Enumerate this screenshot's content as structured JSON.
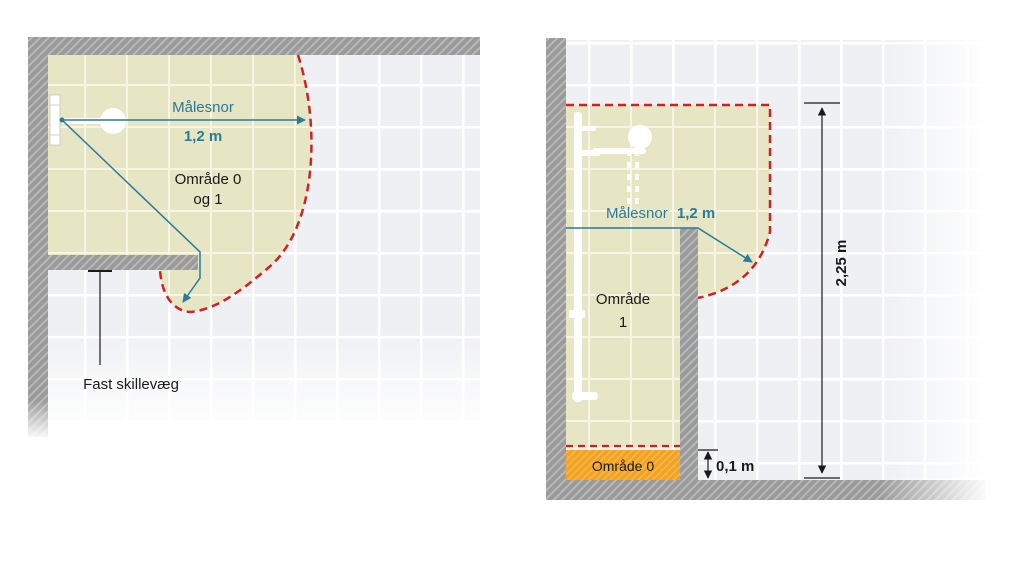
{
  "colors": {
    "zone_fill": "#e6e5c4",
    "zone_border": "#d41f25",
    "measure_line": "#2a7a98",
    "wall": "#9a9a9a",
    "tile_bg": "#eef0f4",
    "tile_grout": "#ffffff",
    "zone0_fill": "#f2a323",
    "text": "#1a1a1a"
  },
  "left_diagram": {
    "measure_label": "Målesnor",
    "measure_value": "1,2 m",
    "zone_label_line1": "Område 0",
    "zone_label_line2": "og 1",
    "wall_caption": "Fast skillevæg"
  },
  "right_diagram": {
    "measure_label": "Målesnor",
    "measure_value": "1,2 m",
    "zone1_label_line1": "Område",
    "zone1_label_line2": "1",
    "zone0_label": "Område 0",
    "height_label": "2,25 m",
    "floor_gap_label": "0,1 m"
  },
  "icons": {
    "shower_head_left": "shower-head-icon",
    "shower_right": "shower-rail-icon"
  }
}
